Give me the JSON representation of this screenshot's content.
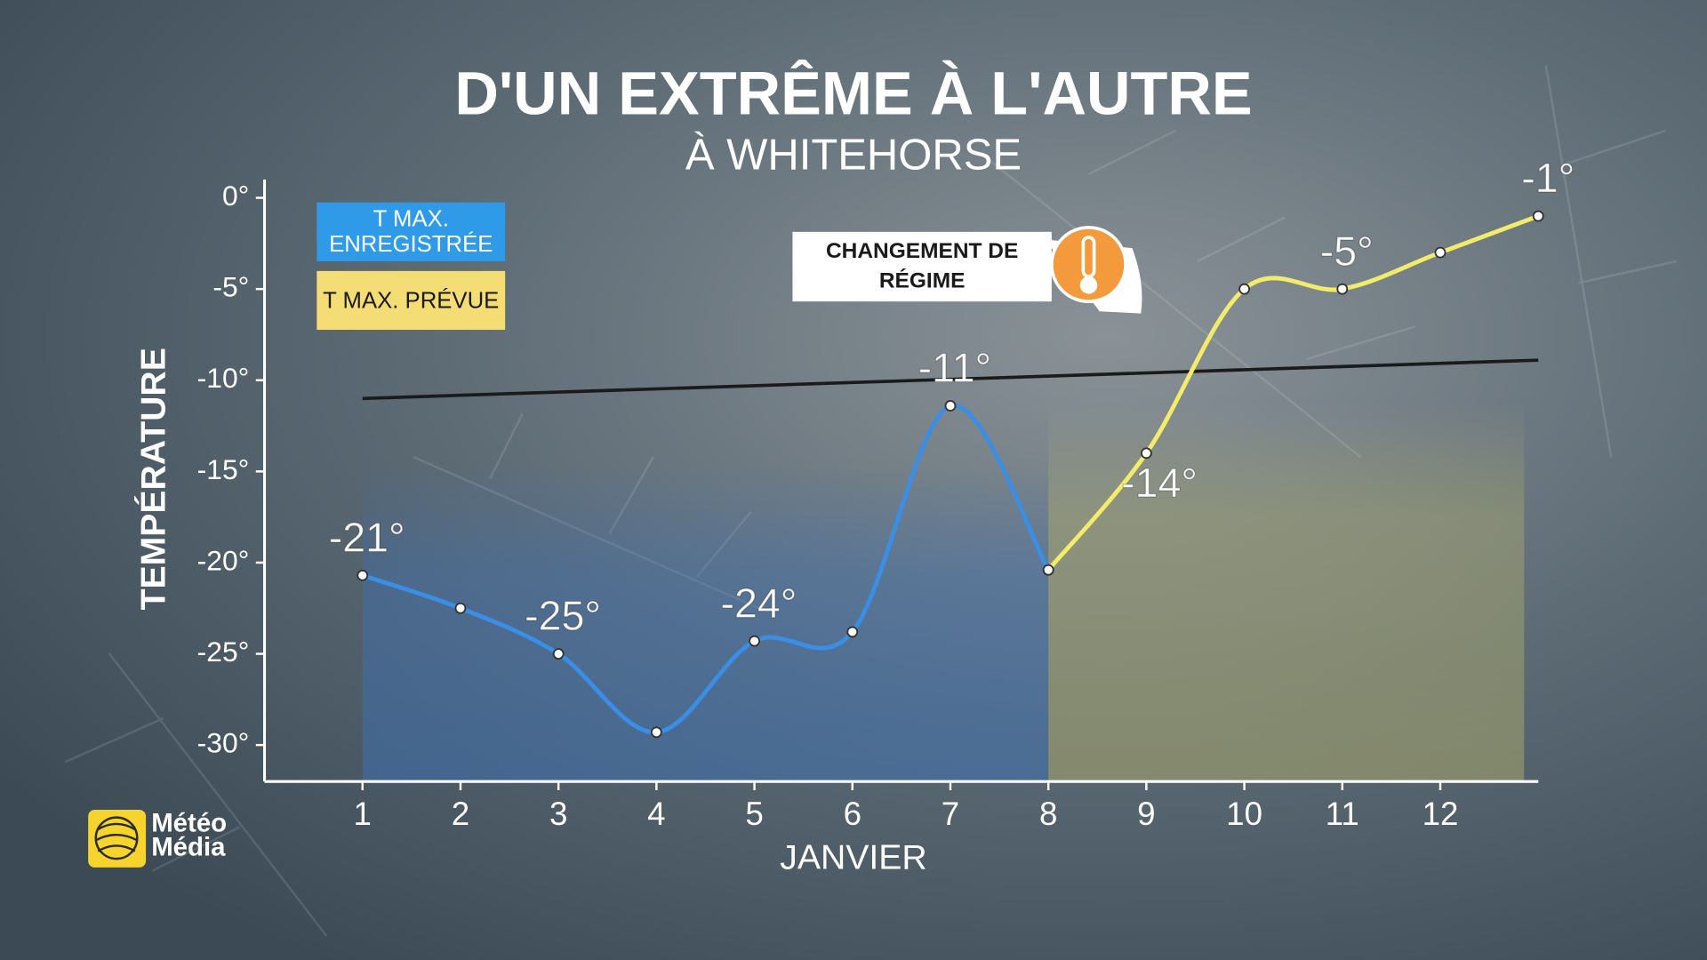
{
  "chart_data": {
    "type": "line",
    "title": "D'UN EXTRÊME À L'AUTRE",
    "subtitle": "À WHITEHORSE",
    "x_label": "JANVIER",
    "y_label": "TEMPÉRATURE",
    "x": [
      1,
      2,
      3,
      4,
      5,
      6,
      7,
      8,
      9,
      10,
      11,
      12,
      13
    ],
    "xlim": [
      0,
      13
    ],
    "xticks": [
      1,
      2,
      3,
      4,
      5,
      6,
      7,
      8,
      9,
      10,
      11,
      12
    ],
    "ylim": [
      -32,
      1
    ],
    "yticks": [
      {
        "value": 0,
        "label": "0°"
      },
      {
        "value": -5,
        "label": "-5°"
      },
      {
        "value": -10,
        "label": "-10°"
      },
      {
        "value": -15,
        "label": "-15°"
      },
      {
        "value": -20,
        "label": "-20°"
      },
      {
        "value": -25,
        "label": "-25°"
      },
      {
        "value": -30,
        "label": "-30°"
      }
    ],
    "series": [
      {
        "name": "T MAX. ENREGISTRÉE",
        "color": "#3a8ee6",
        "legend_color": "#2f9be8",
        "values": [
          -20.7,
          -22.5,
          -25,
          -29.3,
          -24.3,
          -23.8,
          -11.4,
          -20.4,
          null,
          null,
          null,
          null,
          null
        ],
        "value_labels": [
          "-21°",
          null,
          "-25°",
          null,
          "-24°",
          null,
          "-11°",
          null,
          null,
          null,
          null,
          null,
          null
        ]
      },
      {
        "name": "T MAX. PRÉVUE",
        "color": "#f2ec6a",
        "legend_color": "#f3dd74",
        "values": [
          null,
          null,
          null,
          null,
          null,
          null,
          null,
          -20.4,
          -14,
          -5,
          -5,
          -3,
          -1
        ],
        "value_labels": [
          null,
          null,
          null,
          null,
          null,
          null,
          null,
          null,
          "-14°",
          null,
          "-5°",
          null,
          "-1°"
        ]
      }
    ],
    "trend": {
      "color": "#1b1b1b",
      "x": [
        1,
        13
      ],
      "values": [
        -11,
        -8.9
      ]
    },
    "annotation": "CHANGEMENT DE RÉGIME",
    "brand": "Météo Média"
  }
}
